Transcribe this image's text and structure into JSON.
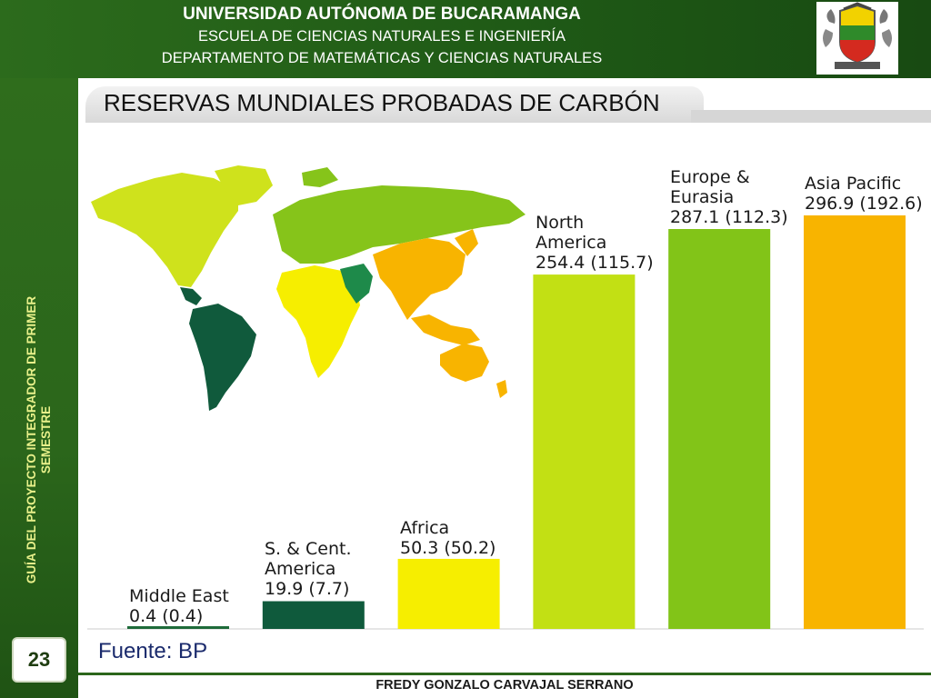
{
  "header": {
    "university": "UNIVERSIDAD AUTÓNOMA DE BUCARAMANGA",
    "school": "ESCUELA DE CIENCIAS NATURALES E INGENIERÍA",
    "department": "DEPARTAMENTO DE MATEMÁTICAS Y CIENCIAS NATURALES"
  },
  "sidebar": {
    "line1": "GUÍA DEL PROYECTO INTEGRADOR DE PRIMER",
    "line2": "SEMESTRE",
    "page_number": "23"
  },
  "slide": {
    "title": "RESERVAS MUNDIALES PROBADAS DE CARBÓN",
    "source": "Fuente: BP",
    "footer": "FREDY GONZALO CARVAJAL SERRANO"
  },
  "chart_data": {
    "type": "bar",
    "categories": [
      "Middle East",
      "S. & Cent. America",
      "Africa",
      "North America",
      "Europe & Eurasia",
      "Asia Pacific"
    ],
    "values": [
      0.4,
      19.9,
      50.3,
      254.4,
      287.1,
      296.9
    ],
    "secondary_values": [
      0.4,
      7.7,
      50.2,
      115.7,
      112.3,
      192.6
    ],
    "labels": [
      [
        "Middle East",
        "0.4 (0.4)"
      ],
      [
        "S. & Cent.",
        "America",
        "19.9 (7.7)"
      ],
      [
        "Africa",
        "50.3 (50.2)"
      ],
      [
        "North",
        "America",
        "254.4 (115.7)"
      ],
      [
        "Europe &",
        "Eurasia",
        "287.1 (112.3)"
      ],
      [
        "Asia Pacific",
        "296.9 (192.6)"
      ]
    ],
    "colors": [
      "#1e6b3a",
      "#0f5a3c",
      "#f6ee00",
      "#c2e014",
      "#82c418",
      "#f8b400"
    ]
  }
}
